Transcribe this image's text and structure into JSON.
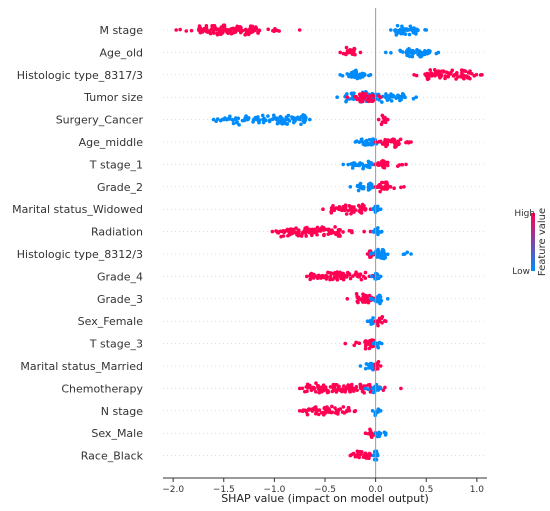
{
  "chart_data": {
    "type": "beeswarm",
    "xlabel": "SHAP value (impact on model output)",
    "xlim": [
      -2.1,
      1.1
    ],
    "xticks": [
      {
        "value": -2.0,
        "label": "−2.0"
      },
      {
        "value": -1.5,
        "label": "−1.5"
      },
      {
        "value": -1.0,
        "label": "−1.0"
      },
      {
        "value": -0.5,
        "label": "−0.5"
      },
      {
        "value": 0.0,
        "label": "0.0"
      },
      {
        "value": 0.5,
        "label": "0.5"
      },
      {
        "value": 1.0,
        "label": "1.0"
      }
    ],
    "grid": false,
    "colors": {
      "high": "#ff0052",
      "low": "#008bfb"
    },
    "legend": {
      "position": "right",
      "high_label": "High",
      "low_label": "Low",
      "title": "Feature value"
    },
    "features": [
      {
        "name": "M stage",
        "segments": [
          {
            "color": "high",
            "min": -1.97,
            "max": -0.75,
            "core": [
              -1.75,
              -1.15
            ]
          },
          {
            "color": "low",
            "min": 0.15,
            "max": 0.5,
            "core": [
              0.2,
              0.4
            ]
          }
        ]
      },
      {
        "name": "Age_old",
        "segments": [
          {
            "color": "high",
            "min": -0.35,
            "max": -0.15,
            "core": [
              -0.3,
              -0.2
            ]
          },
          {
            "color": "low",
            "min": 0.1,
            "max": 0.62,
            "core": [
              0.3,
              0.55
            ]
          }
        ]
      },
      {
        "name": "Histologic type_8317/3",
        "segments": [
          {
            "color": "low",
            "min": -0.35,
            "max": -0.05,
            "core": [
              -0.25,
              -0.1
            ]
          },
          {
            "color": "high",
            "min": 0.38,
            "max": 1.05,
            "core": [
              0.5,
              0.95
            ]
          }
        ]
      },
      {
        "name": "Tumor size",
        "segments": [
          {
            "color": "low",
            "min": -0.38,
            "max": 0.4,
            "core": [
              -0.3,
              0.3
            ]
          },
          {
            "color": "high",
            "min": -0.28,
            "max": 0.05,
            "core": [
              -0.2,
              -0.02
            ]
          }
        ]
      },
      {
        "name": "Surgery_Cancer",
        "segments": [
          {
            "color": "low",
            "min": -1.6,
            "max": -0.65,
            "core": [
              -1.45,
              -0.7
            ]
          },
          {
            "color": "high",
            "min": 0.03,
            "max": 0.12,
            "core": [
              0.05,
              0.1
            ]
          }
        ]
      },
      {
        "name": "Age_middle",
        "segments": [
          {
            "color": "low",
            "min": -0.2,
            "max": 0.05,
            "core": [
              -0.15,
              0.0
            ]
          },
          {
            "color": "high",
            "min": 0.0,
            "max": 0.35,
            "core": [
              0.05,
              0.25
            ]
          }
        ]
      },
      {
        "name": "T stage_1",
        "segments": [
          {
            "color": "low",
            "min": -0.32,
            "max": 0.0,
            "core": [
              -0.25,
              -0.05
            ]
          },
          {
            "color": "high",
            "min": 0.0,
            "max": 0.3,
            "core": [
              0.02,
              0.12
            ]
          }
        ]
      },
      {
        "name": "Grade_2",
        "segments": [
          {
            "color": "low",
            "min": -0.25,
            "max": 0.0,
            "core": [
              -0.18,
              -0.03
            ]
          },
          {
            "color": "high",
            "min": 0.0,
            "max": 0.28,
            "core": [
              0.03,
              0.12
            ]
          }
        ]
      },
      {
        "name": "Marital status_Widowed",
        "segments": [
          {
            "color": "high",
            "min": -0.52,
            "max": -0.05,
            "core": [
              -0.45,
              -0.1
            ]
          },
          {
            "color": "low",
            "min": -0.03,
            "max": 0.05,
            "core": [
              -0.01,
              0.03
            ]
          }
        ]
      },
      {
        "name": "Radiation",
        "segments": [
          {
            "color": "high",
            "min": -1.02,
            "max": -0.05,
            "core": [
              -0.95,
              -0.35
            ]
          },
          {
            "color": "low",
            "min": -0.03,
            "max": 0.06,
            "core": [
              -0.01,
              0.04
            ]
          }
        ]
      },
      {
        "name": "Histologic type_8312/3",
        "segments": [
          {
            "color": "high",
            "min": -0.08,
            "max": 0.0,
            "core": [
              -0.06,
              -0.02
            ]
          },
          {
            "color": "low",
            "min": -0.05,
            "max": 0.35,
            "core": [
              0.0,
              0.1
            ]
          }
        ]
      },
      {
        "name": "Grade_4",
        "segments": [
          {
            "color": "high",
            "min": -0.68,
            "max": -0.02,
            "core": [
              -0.65,
              -0.1
            ]
          },
          {
            "color": "low",
            "min": -0.04,
            "max": 0.05,
            "core": [
              -0.01,
              0.04
            ]
          }
        ]
      },
      {
        "name": "Grade_3",
        "segments": [
          {
            "color": "high",
            "min": -0.28,
            "max": 0.0,
            "core": [
              -0.2,
              -0.03
            ]
          },
          {
            "color": "low",
            "min": -0.05,
            "max": 0.12,
            "core": [
              0.0,
              0.06
            ]
          }
        ]
      },
      {
        "name": "Sex_Female",
        "segments": [
          {
            "color": "low",
            "min": -0.08,
            "max": 0.0,
            "core": [
              -0.06,
              -0.02
            ]
          },
          {
            "color": "high",
            "min": 0.0,
            "max": 0.1,
            "core": [
              0.02,
              0.07
            ]
          }
        ]
      },
      {
        "name": "T stage_3",
        "segments": [
          {
            "color": "high",
            "min": -0.3,
            "max": 0.0,
            "core": [
              -0.1,
              -0.02
            ]
          },
          {
            "color": "low",
            "min": -0.02,
            "max": 0.06,
            "core": [
              0.0,
              0.04
            ]
          }
        ]
      },
      {
        "name": "Marital status_Married",
        "segments": [
          {
            "color": "low",
            "min": -0.15,
            "max": 0.0,
            "core": [
              -0.1,
              -0.02
            ]
          },
          {
            "color": "high",
            "min": 0.0,
            "max": 0.05,
            "core": [
              0.0,
              0.03
            ]
          }
        ]
      },
      {
        "name": "Chemotherapy",
        "segments": [
          {
            "color": "high",
            "min": -0.75,
            "max": 0.25,
            "core": [
              -0.7,
              -0.05
            ]
          },
          {
            "color": "low",
            "min": -0.1,
            "max": 0.05,
            "core": [
              -0.03,
              0.03
            ]
          }
        ]
      },
      {
        "name": "N stage",
        "segments": [
          {
            "color": "high",
            "min": -0.75,
            "max": -0.2,
            "core": [
              -0.7,
              -0.25
            ]
          },
          {
            "color": "low",
            "min": -0.03,
            "max": 0.05,
            "core": [
              -0.01,
              0.03
            ]
          }
        ]
      },
      {
        "name": "Sex_Male",
        "segments": [
          {
            "color": "high",
            "min": -0.1,
            "max": 0.0,
            "core": [
              -0.06,
              -0.02
            ]
          },
          {
            "color": "low",
            "min": 0.0,
            "max": 0.1,
            "core": [
              0.01,
              0.06
            ]
          }
        ]
      },
      {
        "name": "Race_Black",
        "segments": [
          {
            "color": "high",
            "min": -0.25,
            "max": 0.0,
            "core": [
              -0.22,
              -0.05
            ]
          },
          {
            "color": "low",
            "min": -0.02,
            "max": 0.02,
            "core": [
              -0.01,
              0.01
            ]
          }
        ]
      }
    ]
  }
}
